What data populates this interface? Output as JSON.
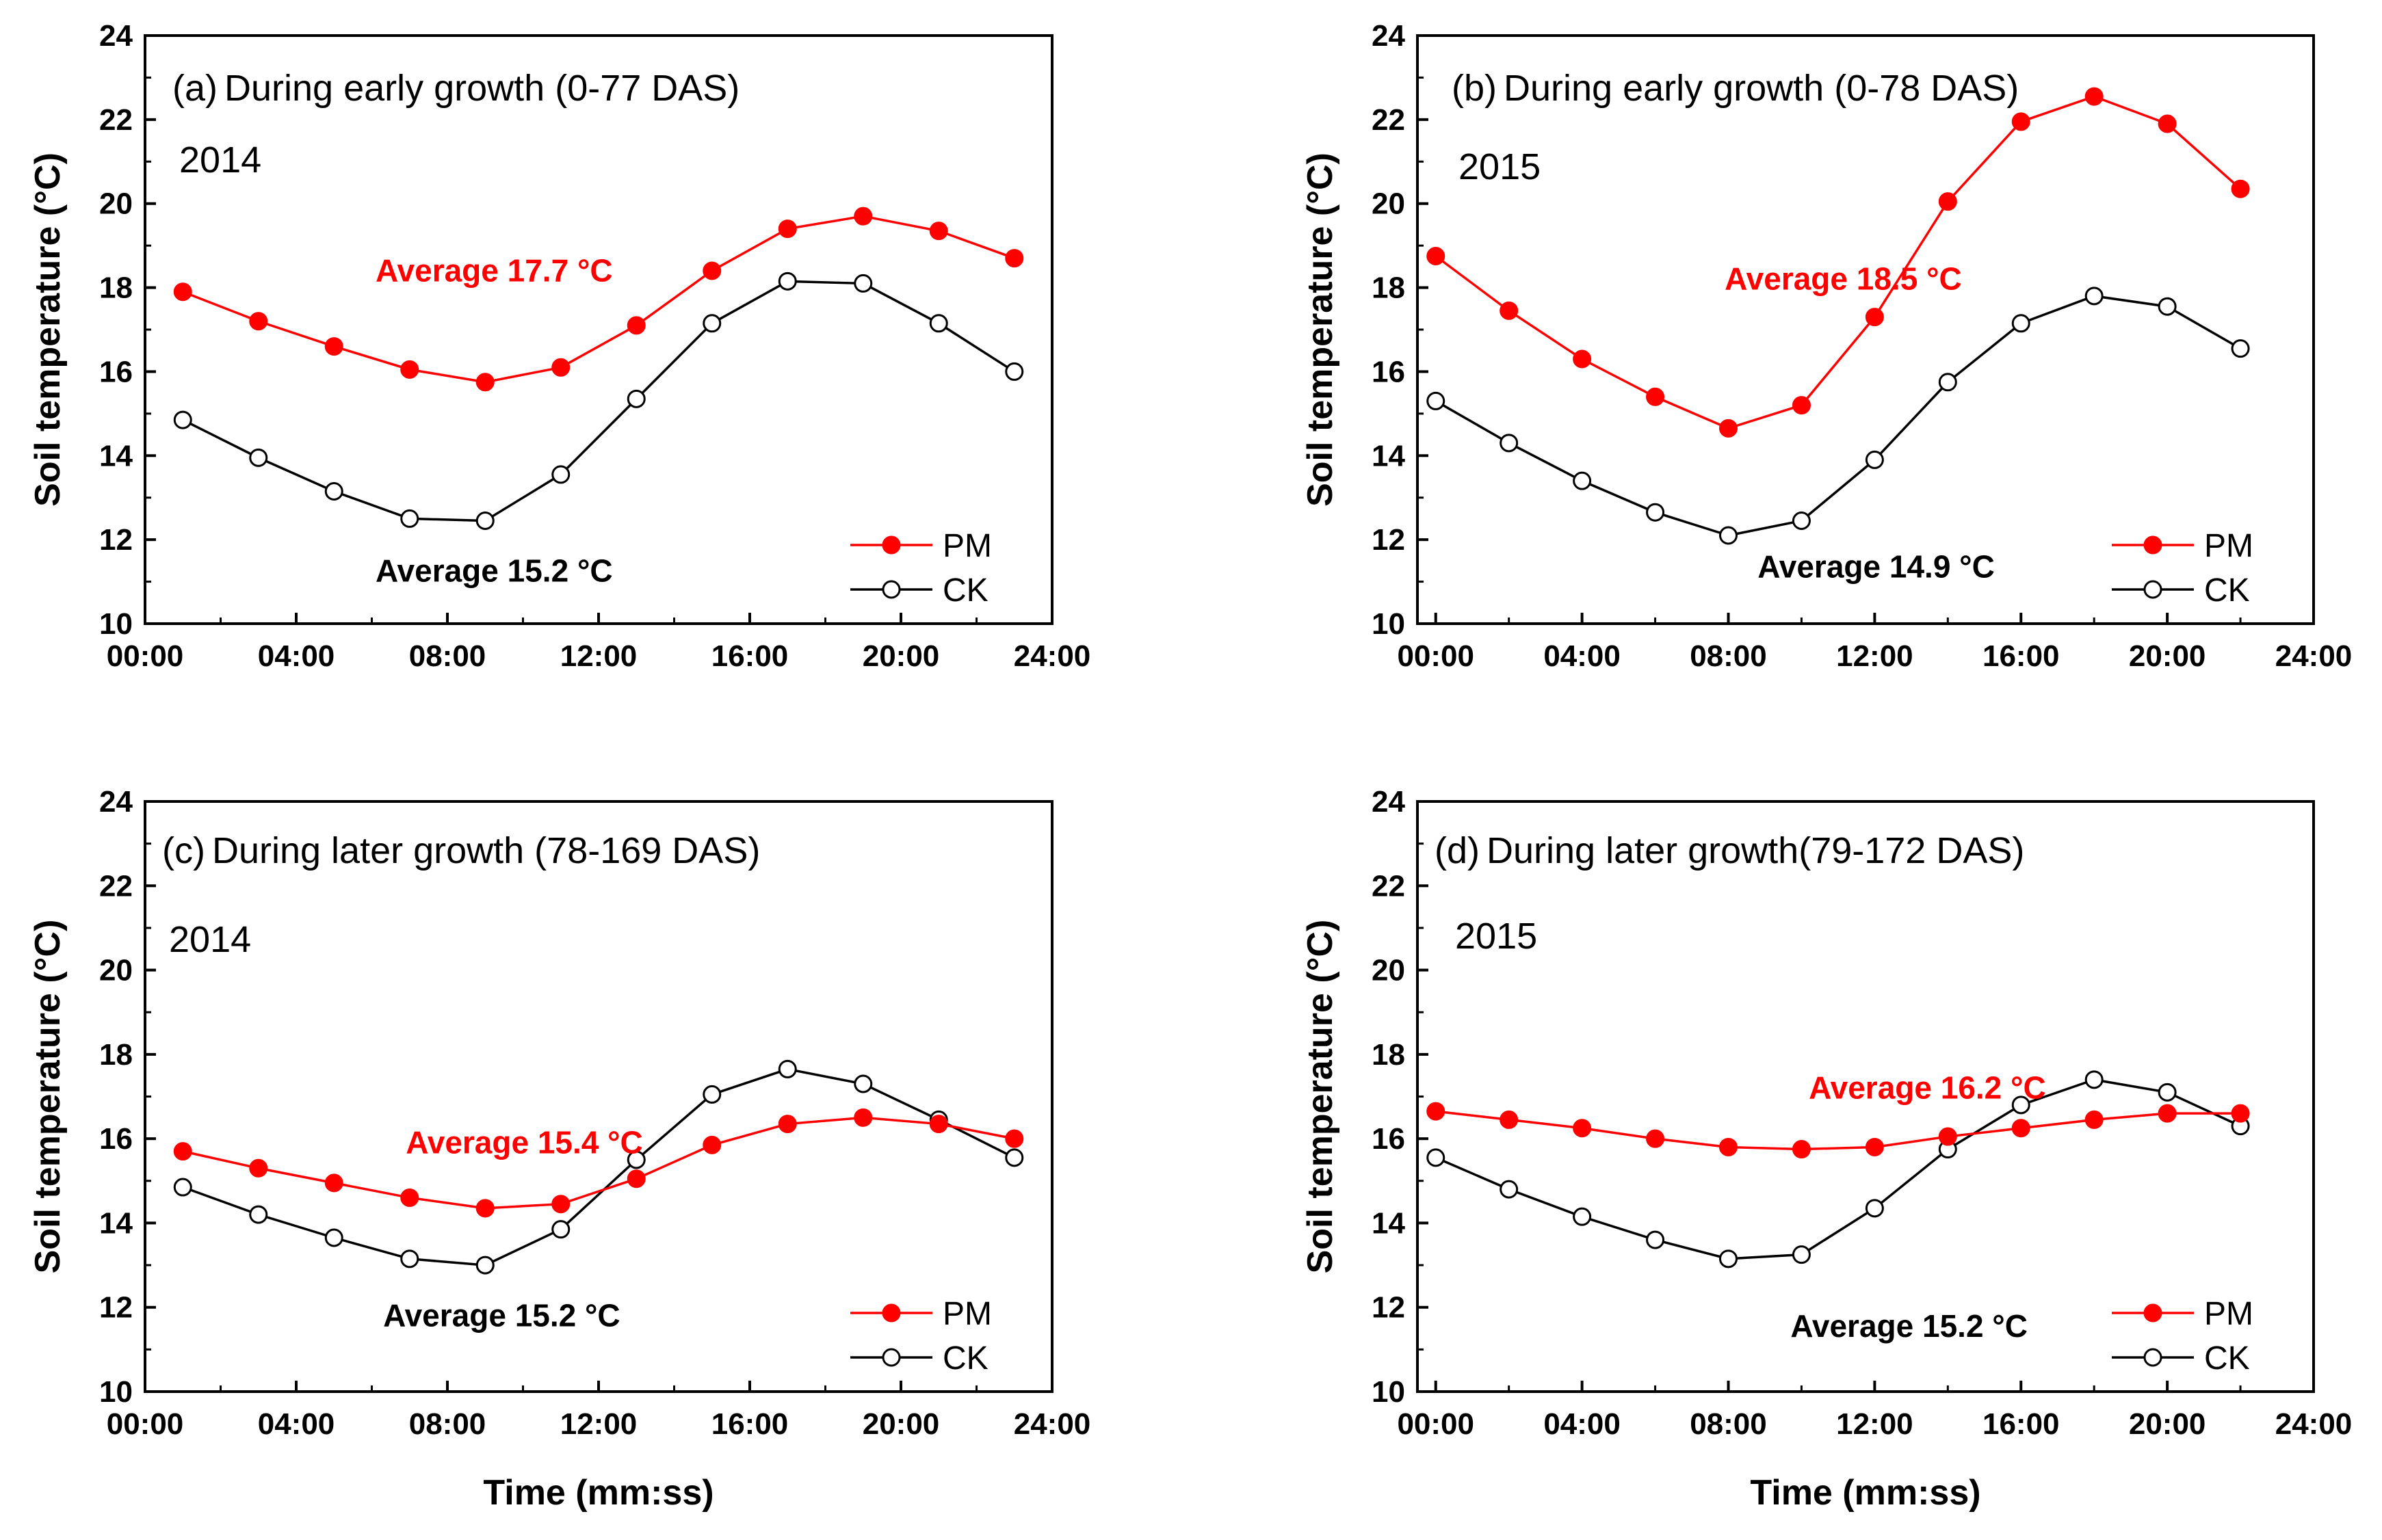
{
  "chart_data": [
    {
      "type": "line",
      "panel_label": "(a)",
      "title": "During early growth (0-77 DAS)",
      "year": "2014",
      "xlabel": "",
      "ylabel": "Soil temperature (°C)",
      "xlim": [
        0,
        24
      ],
      "ylim": [
        10,
        24
      ],
      "xticks": [
        "00:00",
        "04:00",
        "08:00",
        "12:00",
        "16:00",
        "20:00",
        "24:00"
      ],
      "yticks": [
        "10",
        "12",
        "14",
        "16",
        "18",
        "20",
        "22",
        "24"
      ],
      "x": [
        1,
        3,
        5,
        7,
        9,
        11,
        13,
        15,
        17,
        19,
        21,
        23
      ],
      "series": [
        {
          "name": "PM",
          "color": "#ff0000",
          "marker": "filled",
          "values": [
            17.9,
            17.2,
            16.6,
            16.05,
            15.75,
            16.1,
            17.1,
            18.4,
            19.4,
            19.7,
            19.35,
            18.7
          ]
        },
        {
          "name": "CK",
          "color": "#000000",
          "marker": "open",
          "values": [
            14.85,
            13.95,
            13.15,
            12.5,
            12.45,
            13.55,
            15.35,
            17.15,
            18.15,
            18.1,
            17.15,
            16.0
          ]
        }
      ],
      "annotations": [
        {
          "text": "Average 17.7 °C",
          "color": "#ff0000",
          "x": 6.1,
          "y": 18.15
        },
        {
          "text": "Average 15.2 °C",
          "color": "#000000",
          "x": 6.1,
          "y": 11.0
        }
      ],
      "legend": "bottom-right"
    },
    {
      "type": "line",
      "panel_label": "(b)",
      "title": "During early growth (0-78 DAS)",
      "year": "2015",
      "xlabel": "",
      "ylabel": "Soil temperature (°C)",
      "xlim": [
        -0.5,
        24
      ],
      "ylim": [
        10,
        24
      ],
      "xticks": [
        "00:00",
        "04:00",
        "08:00",
        "12:00",
        "16:00",
        "20:00",
        "24:00"
      ],
      "yticks": [
        "10",
        "12",
        "14",
        "16",
        "18",
        "20",
        "22",
        "24"
      ],
      "x": [
        0,
        2,
        4,
        6,
        8,
        10,
        12,
        14,
        16,
        18,
        20,
        22
      ],
      "series": [
        {
          "name": "PM",
          "color": "#ff0000",
          "marker": "filled",
          "values": [
            18.75,
            17.45,
            16.3,
            15.4,
            14.65,
            15.2,
            17.3,
            20.05,
            21.95,
            22.55,
            21.9,
            20.35
          ]
        },
        {
          "name": "CK",
          "color": "#000000",
          "marker": "open",
          "values": [
            15.3,
            14.3,
            13.4,
            12.65,
            12.1,
            12.45,
            13.9,
            15.75,
            17.15,
            17.8,
            17.55,
            16.55
          ]
        }
      ],
      "annotations": [
        {
          "text": "Average 18.5 °C",
          "color": "#ff0000",
          "x": 7.9,
          "y": 17.95
        },
        {
          "text": "Average 14.9 °C",
          "color": "#000000",
          "x": 8.8,
          "y": 11.1
        }
      ],
      "legend": "bottom-right"
    },
    {
      "type": "line",
      "panel_label": "(c)",
      "title": "During later growth (78-169 DAS)",
      "year": "2014",
      "xlabel": "Time (mm:ss)",
      "ylabel": "Soil temperature (°C)",
      "xlim": [
        0,
        24
      ],
      "ylim": [
        10,
        24
      ],
      "xticks": [
        "00:00",
        "04:00",
        "08:00",
        "12:00",
        "16:00",
        "20:00",
        "24:00"
      ],
      "yticks": [
        "10",
        "12",
        "14",
        "16",
        "18",
        "20",
        "22",
        "24"
      ],
      "x": [
        1,
        3,
        5,
        7,
        9,
        11,
        13,
        15,
        17,
        19,
        21,
        23
      ],
      "series": [
        {
          "name": "PM",
          "color": "#ff0000",
          "marker": "filled",
          "values": [
            15.7,
            15.3,
            14.95,
            14.6,
            14.35,
            14.45,
            15.05,
            15.85,
            16.35,
            16.5,
            16.35,
            16.0
          ]
        },
        {
          "name": "CK",
          "color": "#000000",
          "marker": "open",
          "values": [
            14.85,
            14.2,
            13.65,
            13.15,
            13.0,
            13.85,
            15.5,
            17.05,
            17.65,
            17.3,
            16.45,
            15.55
          ]
        }
      ],
      "annotations": [
        {
          "text": "Average 15.4 °C",
          "color": "#ff0000",
          "x": 6.9,
          "y": 15.65
        },
        {
          "text": "Average 15.2 °C",
          "color": "#000000",
          "x": 6.3,
          "y": 11.55
        }
      ],
      "legend": "bottom-right"
    },
    {
      "type": "line",
      "panel_label": "(d)",
      "title": "During later growth(79-172 DAS)",
      "year": "2015",
      "xlabel": "Time (mm:ss)",
      "ylabel": "Soil temperature (°C)",
      "xlim": [
        -0.5,
        24
      ],
      "ylim": [
        10,
        24
      ],
      "xticks": [
        "00:00",
        "04:00",
        "08:00",
        "12:00",
        "16:00",
        "20:00",
        "24:00"
      ],
      "yticks": [
        "10",
        "12",
        "14",
        "16",
        "18",
        "20",
        "22",
        "24"
      ],
      "x": [
        0,
        2,
        4,
        6,
        8,
        10,
        12,
        14,
        16,
        18,
        20,
        22
      ],
      "series": [
        {
          "name": "PM",
          "color": "#ff0000",
          "marker": "filled",
          "values": [
            16.65,
            16.45,
            16.25,
            16.0,
            15.8,
            15.75,
            15.8,
            16.05,
            16.25,
            16.45,
            16.6,
            16.6
          ]
        },
        {
          "name": "CK",
          "color": "#000000",
          "marker": "open",
          "values": [
            15.55,
            14.8,
            14.15,
            13.6,
            13.15,
            13.25,
            14.35,
            15.75,
            16.8,
            17.4,
            17.1,
            16.3
          ]
        }
      ],
      "annotations": [
        {
          "text": "Average 16.2 °C",
          "color": "#ff0000",
          "x": 10.2,
          "y": 16.95
        },
        {
          "text": "Average 15.2 °C",
          "color": "#000000",
          "x": 9.7,
          "y": 11.3
        }
      ],
      "legend": "bottom-right"
    }
  ]
}
